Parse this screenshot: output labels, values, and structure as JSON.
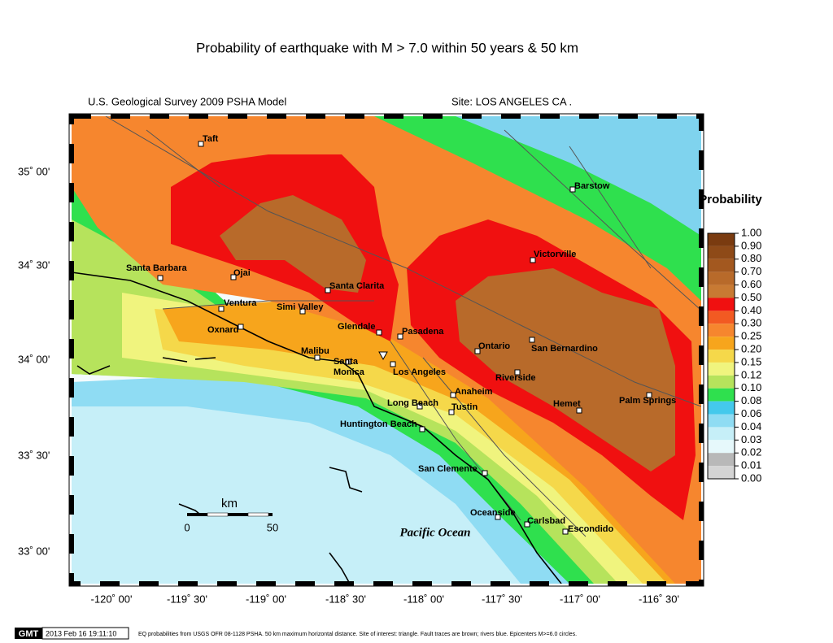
{
  "title": "Probability of earthquake with M > 7.0 within 50 years & 50 km",
  "header": {
    "left": "U.S. Geological Survey 2009 PSHA Model",
    "right": "Site: LOS  ANGELES CA ."
  },
  "lat_labels": [
    "35˚ 00'",
    "34˚ 30'",
    "34˚ 00'",
    "33˚ 30'",
    "33˚ 00'"
  ],
  "lon_labels": [
    "-120˚ 00'",
    "-119˚ 30'",
    "-119˚ 00'",
    "-118˚ 30'",
    "-118˚ 00'",
    "-117˚ 30'",
    "-117˚ 00'",
    "-116˚ 30'"
  ],
  "cities": [
    "Taft",
    "Barstow",
    "Victorville",
    "Santa Barbara",
    "Ojai",
    "Santa Clarita",
    "Ventura",
    "Simi Valley",
    "Oxnard",
    "Glendale",
    "Pasadena",
    "Ontario",
    "San Bernardino",
    "Malibu",
    "Santa Monica",
    "Los Angeles",
    "Riverside",
    "Anaheim",
    "Long Beach",
    "Tustin",
    "Hemet",
    "Palm Springs",
    "Huntington Beach",
    "San Clemente",
    "Oceanside",
    "Carlsbad",
    "Escondido"
  ],
  "ocean_label": "Pacific Ocean",
  "scale_bar": {
    "unit": "km",
    "ticks": [
      0,
      50
    ]
  },
  "colorbar": {
    "title": "Probability",
    "ticks": [
      {
        "value": 1,
        "label": "1.00"
      },
      {
        "value": 0.9,
        "label": "0.90"
      },
      {
        "value": 0.8,
        "label": "0.80"
      },
      {
        "value": 0.7,
        "label": "0.70"
      },
      {
        "value": 0.6,
        "label": "0.60"
      },
      {
        "value": 0.5,
        "label": "0.50"
      },
      {
        "value": 0.4,
        "label": "0.40"
      },
      {
        "value": 0.3,
        "label": "0.30"
      },
      {
        "value": 0.25,
        "label": "0.25"
      },
      {
        "value": 0.2,
        "label": "0.20"
      },
      {
        "value": 0.15,
        "label": "0.15"
      },
      {
        "value": 0.12,
        "label": "0.12"
      },
      {
        "value": 0.1,
        "label": "0.10"
      },
      {
        "value": 0.08,
        "label": "0.08"
      },
      {
        "value": 0.06,
        "label": "0.06"
      },
      {
        "value": 0.04,
        "label": "0.04"
      },
      {
        "value": 0.03,
        "label": "0.03"
      },
      {
        "value": 0.02,
        "label": "0.02"
      },
      {
        "value": 0.01,
        "label": "0.01"
      },
      {
        "value": 0,
        "label": "0.00"
      }
    ],
    "colors": [
      "#7a3b10",
      "#8e4a18",
      "#a3581f",
      "#b86a2a",
      "#c87a33",
      "#f01010",
      "#f25a22",
      "#f6862e",
      "#f7a51c",
      "#f5d84a",
      "#f0f47e",
      "#b6e35c",
      "#2fe04e",
      "#44c9ec",
      "#8fdcf3",
      "#c6eff8",
      "#e6f8fb",
      "#b8b8b8",
      "#d4d4d4",
      "#ececec"
    ]
  },
  "footer": {
    "badge": "GMT",
    "timestamp": "2013 Feb 16 19:11:10",
    "caption": "EQ probabilities from USGS OFR 08-1128 PSHA. 50 km maximum horizontal distance. Site of interest: triangle. Fault traces are brown; rivers blue. Epicenters M>=6.0 circles."
  }
}
